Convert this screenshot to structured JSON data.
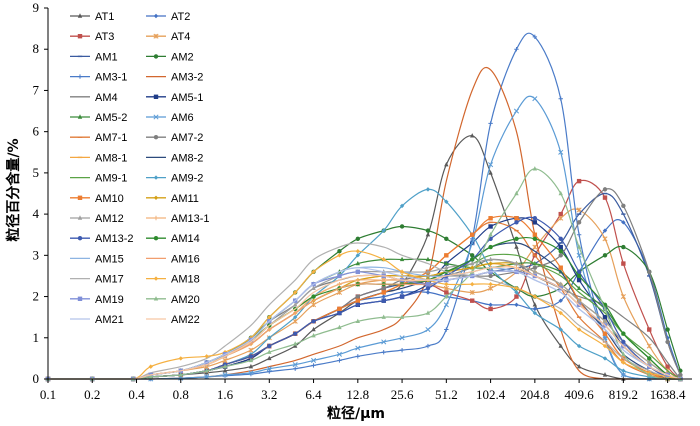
{
  "chart_data": {
    "type": "line",
    "xlabel": "粒径/μm",
    "ylabel": "粒径百分含量/%",
    "x_ticks": [
      "0.1",
      "0.2",
      "0.4",
      "0.8",
      "1.6",
      "3.2",
      "6.4",
      "12.8",
      "25.6",
      "51.2",
      "102.4",
      "204.8",
      "409.6",
      "819.2",
      "1638.4"
    ],
    "x_scale": "log2",
    "xlim": [
      0.1,
      2400
    ],
    "ylim": [
      0,
      9
    ],
    "y_ticks": [
      "0",
      "1",
      "2",
      "3",
      "4",
      "5",
      "6",
      "7",
      "8",
      "9"
    ],
    "x_samples": [
      0.1,
      0.2,
      0.38,
      0.5,
      0.8,
      1.2,
      1.6,
      2.4,
      3.2,
      4.8,
      6.4,
      9.6,
      12.8,
      19.2,
      25.6,
      38.4,
      51.2,
      76.8,
      102.4,
      153.6,
      204.8,
      307.2,
      409.6,
      614.4,
      819.2,
      1228.8,
      1638.4,
      2000
    ],
    "series": [
      {
        "name": "AT1",
        "color": "#595959",
        "marker": "triangle",
        "values": [
          0,
          0,
          0,
          0.05,
          0.1,
          0.15,
          0.2,
          0.3,
          0.5,
          0.8,
          1.2,
          1.6,
          1.9,
          2.1,
          2.3,
          3.5,
          5.2,
          5.9,
          5.0,
          3.2,
          1.8,
          0.8,
          0.3,
          0.1,
          0,
          0,
          0,
          0
        ]
      },
      {
        "name": "AT2",
        "color": "#4472c4",
        "marker": "diamond",
        "values": [
          0,
          0,
          0,
          0.05,
          0.1,
          0.2,
          0.3,
          0.5,
          0.8,
          1.1,
          1.4,
          1.7,
          1.9,
          2.0,
          2.1,
          2.1,
          2.0,
          1.9,
          1.8,
          1.8,
          1.7,
          1.9,
          2.6,
          3.6,
          3.8,
          2.6,
          1.0,
          0.1
        ]
      },
      {
        "name": "AT3",
        "color": "#c0504d",
        "marker": "square",
        "values": [
          0,
          0,
          0,
          0.05,
          0.1,
          0.2,
          0.3,
          0.5,
          0.8,
          1.1,
          1.4,
          1.7,
          2.0,
          2.2,
          2.3,
          2.3,
          2.1,
          1.9,
          1.7,
          2.0,
          3.0,
          4.0,
          4.8,
          4.4,
          2.8,
          1.2,
          0.3,
          0
        ]
      },
      {
        "name": "AT4",
        "color": "#e6a05a",
        "marker": "cross",
        "values": [
          0,
          0,
          0,
          0.1,
          0.2,
          0.3,
          0.45,
          0.7,
          1.0,
          1.4,
          1.8,
          2.1,
          2.3,
          2.4,
          2.4,
          2.3,
          2.2,
          2.1,
          2.2,
          2.6,
          3.2,
          3.9,
          4.1,
          3.4,
          2.0,
          0.8,
          0.2,
          0
        ]
      },
      {
        "name": "AM1",
        "color": "#3a5ba0",
        "marker": "dash",
        "values": [
          0,
          0,
          0,
          0.05,
          0.1,
          0.2,
          0.3,
          0.5,
          0.8,
          1.1,
          1.4,
          1.7,
          2.0,
          2.2,
          2.3,
          2.4,
          2.4,
          2.5,
          2.6,
          2.7,
          2.8,
          3.3,
          4.0,
          4.5,
          4.0,
          2.5,
          0.9,
          0.1
        ]
      },
      {
        "name": "AM2",
        "color": "#2e7d32",
        "marker": "circle",
        "values": [
          0,
          0,
          0,
          0.1,
          0.2,
          0.4,
          0.6,
          1.0,
          1.5,
          2.1,
          2.6,
          3.1,
          3.4,
          3.6,
          3.7,
          3.6,
          3.4,
          3.0,
          2.6,
          2.2,
          2.0,
          2.2,
          2.6,
          3.0,
          3.2,
          2.6,
          1.2,
          0.2
        ]
      },
      {
        "name": "AM3-1",
        "color": "#4a7bc8",
        "marker": "plus",
        "values": [
          0,
          0,
          0,
          0,
          0.02,
          0.05,
          0.08,
          0.12,
          0.18,
          0.25,
          0.33,
          0.45,
          0.55,
          0.65,
          0.7,
          0.8,
          1.2,
          3.4,
          6.2,
          8.0,
          8.3,
          6.8,
          3.5,
          1.0,
          0.1,
          0,
          0,
          0
        ]
      },
      {
        "name": "AM3-2",
        "color": "#d2672e",
        "marker": "none",
        "values": [
          0,
          0,
          0,
          0,
          0.02,
          0.05,
          0.1,
          0.2,
          0.3,
          0.45,
          0.6,
          0.8,
          1.0,
          1.2,
          1.5,
          2.5,
          4.8,
          7.0,
          7.5,
          6.0,
          3.5,
          1.2,
          0.2,
          0,
          0,
          0,
          0,
          0
        ]
      },
      {
        "name": "AM4",
        "color": "#808080",
        "marker": "none",
        "values": [
          0,
          0,
          0,
          0.1,
          0.2,
          0.4,
          0.6,
          1.0,
          1.4,
          1.8,
          2.2,
          2.4,
          2.5,
          2.5,
          2.4,
          2.4,
          2.5,
          2.7,
          2.9,
          2.8,
          2.5,
          2.2,
          2.0,
          1.8,
          1.5,
          1.0,
          0.4,
          0
        ]
      },
      {
        "name": "AM5-1",
        "color": "#1f3c88",
        "marker": "square",
        "values": [
          0,
          0,
          0,
          0.05,
          0.1,
          0.2,
          0.3,
          0.5,
          0.8,
          1.1,
          1.4,
          1.6,
          1.8,
          1.9,
          2.0,
          2.3,
          2.8,
          3.3,
          3.7,
          3.9,
          3.8,
          3.2,
          2.4,
          1.5,
          0.8,
          0.3,
          0.1,
          0
        ]
      },
      {
        "name": "AM5-2",
        "color": "#3c8c3c",
        "marker": "triangle",
        "values": [
          0,
          0,
          0,
          0.1,
          0.2,
          0.4,
          0.6,
          1.0,
          1.4,
          1.9,
          2.3,
          2.6,
          2.8,
          2.9,
          2.9,
          2.9,
          2.8,
          2.7,
          2.7,
          2.8,
          2.8,
          2.6,
          2.2,
          1.7,
          1.1,
          0.5,
          0.1,
          0
        ]
      },
      {
        "name": "AM6",
        "color": "#5b9bd5",
        "marker": "xstar",
        "values": [
          0,
          0,
          0,
          0,
          0.02,
          0.05,
          0.1,
          0.15,
          0.25,
          0.35,
          0.45,
          0.6,
          0.75,
          0.9,
          1.0,
          1.2,
          1.8,
          3.3,
          5.2,
          6.5,
          6.8,
          5.5,
          3.0,
          1.0,
          0.1,
          0,
          0,
          0
        ]
      },
      {
        "name": "AM7-1",
        "color": "#e07b39",
        "marker": "dash",
        "values": [
          0,
          0,
          0,
          0.05,
          0.1,
          0.2,
          0.35,
          0.55,
          0.8,
          1.1,
          1.4,
          1.7,
          1.9,
          2.1,
          2.3,
          2.6,
          3.0,
          3.5,
          3.8,
          3.6,
          3.0,
          2.2,
          1.5,
          0.9,
          0.4,
          0.1,
          0,
          0
        ]
      },
      {
        "name": "AM7-2",
        "color": "#7f7f7f",
        "marker": "circle",
        "values": [
          0,
          0,
          0,
          0.05,
          0.1,
          0.2,
          0.35,
          0.55,
          0.8,
          1.1,
          1.4,
          1.7,
          2.0,
          2.2,
          2.4,
          2.5,
          2.5,
          2.5,
          2.5,
          2.6,
          2.7,
          3.0,
          3.8,
          4.6,
          4.2,
          2.6,
          0.9,
          0.1
        ]
      },
      {
        "name": "AM8-1",
        "color": "#f4a742",
        "marker": "dash",
        "values": [
          0,
          0,
          0,
          0.1,
          0.2,
          0.4,
          0.6,
          0.9,
          1.3,
          1.7,
          2.0,
          2.3,
          2.4,
          2.5,
          2.5,
          2.5,
          2.6,
          2.7,
          2.8,
          2.7,
          2.5,
          2.2,
          1.8,
          1.3,
          0.8,
          0.3,
          0.1,
          0
        ]
      },
      {
        "name": "AM8-2",
        "color": "#2c4a7c",
        "marker": "none",
        "values": [
          0,
          0,
          0,
          0.05,
          0.1,
          0.2,
          0.35,
          0.55,
          0.8,
          1.1,
          1.4,
          1.7,
          1.9,
          2.1,
          2.2,
          2.4,
          2.6,
          2.9,
          3.2,
          3.3,
          3.1,
          2.6,
          1.9,
          1.2,
          0.6,
          0.2,
          0,
          0
        ]
      },
      {
        "name": "AM9-1",
        "color": "#5aa346",
        "marker": "none",
        "values": [
          0,
          0,
          0,
          0.1,
          0.2,
          0.35,
          0.55,
          0.85,
          1.2,
          1.6,
          1.9,
          2.2,
          2.3,
          2.3,
          2.3,
          2.4,
          2.6,
          2.8,
          3.0,
          3.0,
          2.8,
          2.5,
          2.1,
          1.6,
          1.1,
          0.6,
          0.2,
          0
        ]
      },
      {
        "name": "AM9-2",
        "color": "#4fa0c8",
        "marker": "diamond",
        "values": [
          0,
          0,
          0,
          0.05,
          0.1,
          0.2,
          0.35,
          0.6,
          1.0,
          1.5,
          2.0,
          2.5,
          3.0,
          3.6,
          4.2,
          4.6,
          4.3,
          3.5,
          2.7,
          2.1,
          1.6,
          1.2,
          0.8,
          0.5,
          0.2,
          0.05,
          0,
          0
        ]
      },
      {
        "name": "AM10",
        "color": "#ed7d31",
        "marker": "square",
        "values": [
          0,
          0,
          0,
          0.05,
          0.1,
          0.2,
          0.35,
          0.55,
          0.8,
          1.1,
          1.4,
          1.7,
          1.9,
          2.1,
          2.3,
          2.6,
          3.0,
          3.5,
          3.9,
          3.9,
          3.5,
          2.7,
          1.9,
          1.1,
          0.5,
          0.15,
          0,
          0
        ]
      },
      {
        "name": "AM11",
        "color": "#d4a017",
        "marker": "diamond",
        "values": [
          0,
          0,
          0,
          0.1,
          0.2,
          0.35,
          0.55,
          0.85,
          1.2,
          1.6,
          1.9,
          2.2,
          2.4,
          2.5,
          2.5,
          2.5,
          2.6,
          2.7,
          2.8,
          2.8,
          2.6,
          2.3,
          1.9,
          1.4,
          0.9,
          0.4,
          0.1,
          0
        ]
      },
      {
        "name": "AM12",
        "color": "#a0a0a0",
        "marker": "triangle",
        "values": [
          0,
          0,
          0,
          0.1,
          0.2,
          0.35,
          0.55,
          0.9,
          1.3,
          1.8,
          2.2,
          2.5,
          2.6,
          2.6,
          2.6,
          2.6,
          2.7,
          2.8,
          2.9,
          2.8,
          2.6,
          2.3,
          1.9,
          1.4,
          0.9,
          0.4,
          0.1,
          0
        ]
      },
      {
        "name": "AM13-1",
        "color": "#f2b27a",
        "marker": "plus",
        "values": [
          0,
          0,
          0,
          0.1,
          0.2,
          0.35,
          0.55,
          0.85,
          1.2,
          1.6,
          2.0,
          2.3,
          2.4,
          2.4,
          2.4,
          2.4,
          2.5,
          2.6,
          2.7,
          2.7,
          2.5,
          2.2,
          1.8,
          1.3,
          0.8,
          0.3,
          0.1,
          0
        ]
      },
      {
        "name": "AM13-2",
        "color": "#3d5ab0",
        "marker": "circle",
        "values": [
          0,
          0,
          0,
          0.05,
          0.1,
          0.2,
          0.35,
          0.55,
          0.8,
          1.1,
          1.4,
          1.6,
          1.8,
          1.9,
          2.0,
          2.2,
          2.5,
          2.9,
          3.4,
          3.8,
          3.9,
          3.4,
          2.6,
          1.7,
          0.9,
          0.3,
          0.05,
          0
        ]
      },
      {
        "name": "AM14",
        "color": "#2e8b2e",
        "marker": "circle",
        "values": [
          0,
          0,
          0,
          0.1,
          0.2,
          0.4,
          0.6,
          0.95,
          1.3,
          1.7,
          2.0,
          2.2,
          2.3,
          2.3,
          2.3,
          2.4,
          2.6,
          2.9,
          3.2,
          3.4,
          3.4,
          3.1,
          2.5,
          1.8,
          1.1,
          0.5,
          0.1,
          0
        ]
      },
      {
        "name": "AM15",
        "color": "#8db4e2",
        "marker": "none",
        "values": [
          0,
          0,
          0,
          0.1,
          0.2,
          0.4,
          0.6,
          0.95,
          1.4,
          1.9,
          2.3,
          2.6,
          2.7,
          2.7,
          2.6,
          2.5,
          2.5,
          2.6,
          2.7,
          2.6,
          2.4,
          2.1,
          1.7,
          1.2,
          0.7,
          0.3,
          0.1,
          0
        ]
      },
      {
        "name": "AM16",
        "color": "#f19e6e",
        "marker": "none",
        "values": [
          0,
          0,
          0,
          0.1,
          0.2,
          0.35,
          0.55,
          0.85,
          1.2,
          1.6,
          1.9,
          2.2,
          2.3,
          2.3,
          2.3,
          2.3,
          2.4,
          2.5,
          2.6,
          2.6,
          2.5,
          2.2,
          1.8,
          1.3,
          0.8,
          0.3,
          0.1,
          0
        ]
      },
      {
        "name": "AM17",
        "color": "#b0b0b0",
        "marker": "none",
        "values": [
          0,
          0,
          0,
          0.15,
          0.3,
          0.5,
          0.8,
          1.3,
          1.8,
          2.4,
          2.9,
          3.2,
          3.3,
          3.2,
          3.0,
          2.8,
          2.6,
          2.5,
          2.4,
          2.2,
          2.0,
          1.7,
          1.3,
          0.9,
          0.5,
          0.2,
          0.05,
          0
        ]
      },
      {
        "name": "AM18",
        "color": "#f5b041",
        "marker": "diamond",
        "values": [
          0,
          0,
          0,
          0.3,
          0.5,
          0.55,
          0.65,
          1.0,
          1.5,
          2.1,
          2.6,
          3.0,
          3.1,
          2.9,
          2.6,
          2.4,
          2.3,
          2.3,
          2.3,
          2.2,
          2.0,
          1.6,
          1.2,
          0.8,
          0.4,
          0.15,
          0.05,
          0
        ]
      },
      {
        "name": "AM19",
        "color": "#7f8fd8",
        "marker": "square",
        "values": [
          0,
          0,
          0,
          0.1,
          0.2,
          0.4,
          0.6,
          0.95,
          1.4,
          1.9,
          2.3,
          2.5,
          2.6,
          2.5,
          2.4,
          2.3,
          2.4,
          2.5,
          2.6,
          2.6,
          2.5,
          2.2,
          1.8,
          1.3,
          0.8,
          0.3,
          0.1,
          0
        ]
      },
      {
        "name": "AM20",
        "color": "#8fbc8f",
        "marker": "triangle",
        "values": [
          0,
          0,
          0,
          0.05,
          0.1,
          0.2,
          0.3,
          0.45,
          0.65,
          0.85,
          1.05,
          1.25,
          1.4,
          1.5,
          1.5,
          1.6,
          2.0,
          2.6,
          3.5,
          4.5,
          5.1,
          4.5,
          3.2,
          1.7,
          0.6,
          0.1,
          0,
          0
        ]
      },
      {
        "name": "AM21",
        "color": "#b4c3ea",
        "marker": "none",
        "values": [
          0,
          0,
          0,
          0.1,
          0.2,
          0.4,
          0.6,
          0.95,
          1.4,
          1.9,
          2.3,
          2.6,
          2.7,
          2.6,
          2.5,
          2.4,
          2.4,
          2.5,
          2.6,
          2.6,
          2.4,
          2.1,
          1.7,
          1.2,
          0.7,
          0.3,
          0.1,
          0
        ]
      },
      {
        "name": "AM22",
        "color": "#f7c6a3",
        "marker": "none",
        "values": [
          0,
          0,
          0,
          0.1,
          0.2,
          0.35,
          0.55,
          0.9,
          1.3,
          1.7,
          2.1,
          2.4,
          2.5,
          2.5,
          2.4,
          2.4,
          2.5,
          2.6,
          2.7,
          2.7,
          2.5,
          2.2,
          1.8,
          1.3,
          0.8,
          0.3,
          0.1,
          0
        ]
      }
    ]
  }
}
